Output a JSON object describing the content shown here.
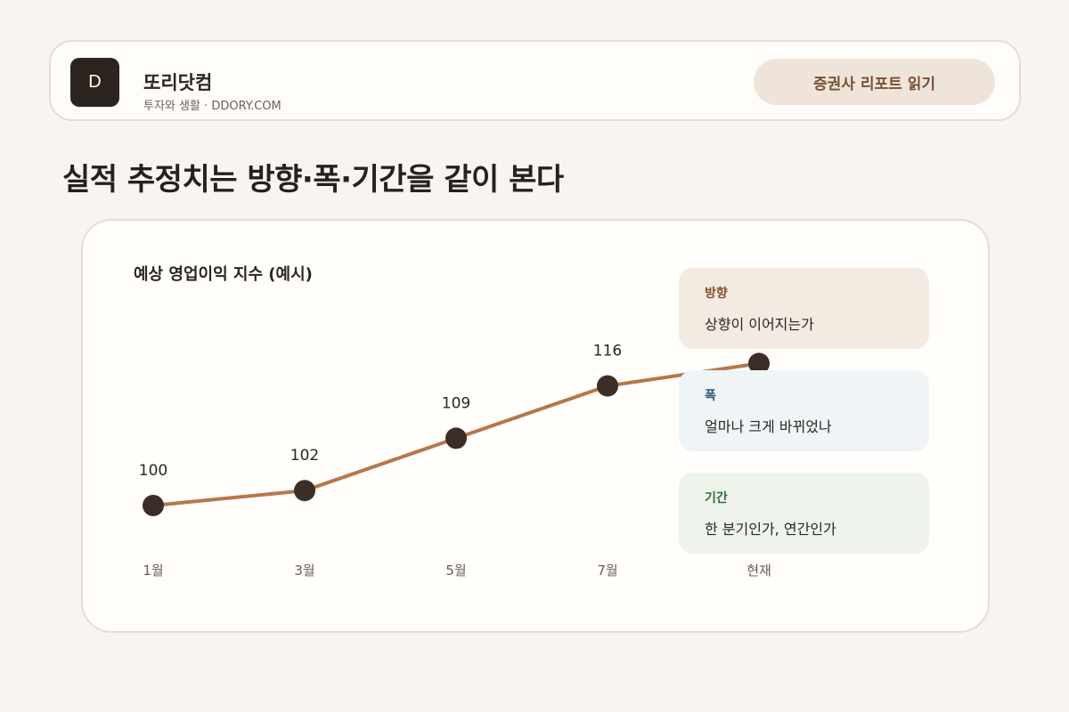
{
  "header": {
    "logo_letter": "D",
    "brand": "또리닷컴",
    "tagline": "투자와 생활 · DDORY.COM",
    "cta_label": "증권사 리포트 읽기"
  },
  "page_title": "실적 추정치는 방향·폭·기간을 같이 본다",
  "colors": {
    "line": "#b8764a",
    "marker": "#3b2e27",
    "background": "#f8f5f0",
    "accent": "#7a4f33"
  },
  "notes": [
    {
      "title": "방향",
      "text": "상향이 이어지는가"
    },
    {
      "title": "폭",
      "text": "얼마나 크게 바뀌었나"
    },
    {
      "title": "기간",
      "text": "한 분기인가, 연간인가"
    }
  ],
  "chart_data": {
    "type": "line",
    "title": "예상 영업이익 지수 (예시)",
    "categories": [
      "1월",
      "3월",
      "5월",
      "7월",
      "현재"
    ],
    "series": [
      {
        "values": [
          100,
          102,
          109,
          116,
          119
        ]
      }
    ],
    "data_labels": [
      "100",
      "102",
      "109",
      "116",
      ""
    ],
    "xlabel": "",
    "ylabel": "",
    "grid": false
  }
}
